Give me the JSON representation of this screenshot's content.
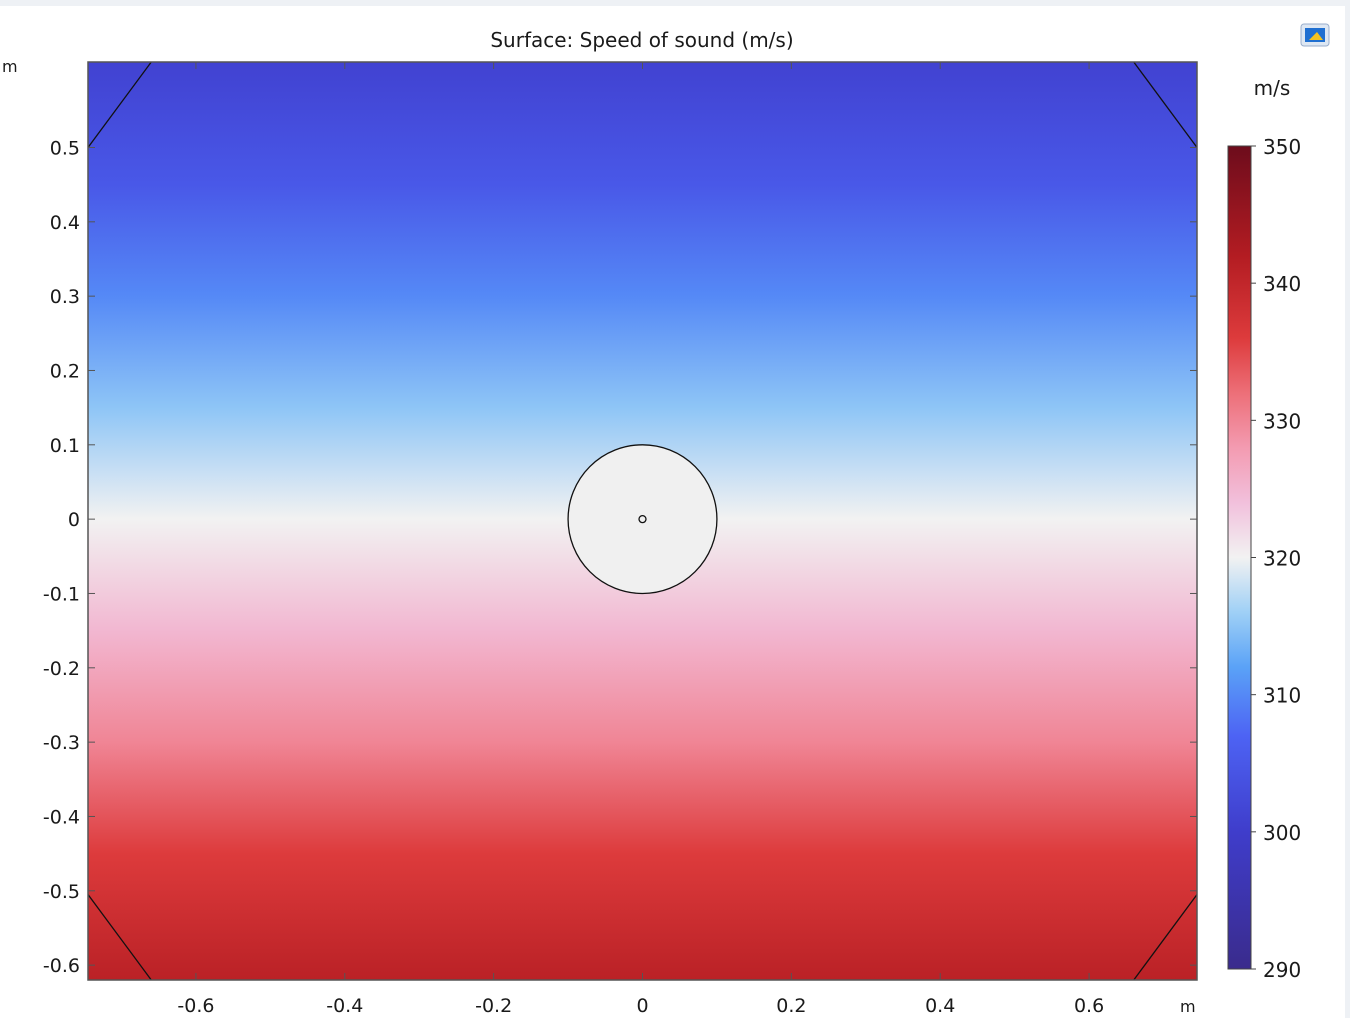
{
  "window": {
    "toolbar_icon": "image-snapshot-icon"
  },
  "chart_data": {
    "type": "heatmap",
    "title": "Surface: Speed of sound (m/s)",
    "xlabel": "m",
    "ylabel": "m",
    "xlim": [
      -0.745,
      0.745
    ],
    "ylim": [
      -0.62,
      0.615
    ],
    "x_ticks": [
      -0.6,
      -0.4,
      -0.2,
      0,
      0.2,
      0.4,
      0.6
    ],
    "x_tick_labels": [
      "-0.6",
      "-0.4",
      "-0.2",
      "0",
      "0.2",
      "0.4",
      "0.6"
    ],
    "y_ticks": [
      0.5,
      0.4,
      0.3,
      0.2,
      0.1,
      0,
      -0.1,
      -0.2,
      -0.3,
      -0.4,
      -0.5,
      -0.6
    ],
    "y_tick_labels": [
      "0.5",
      "0.4",
      "0.3",
      "0.2",
      "0.1",
      "0",
      "-0.1",
      "-0.2",
      "-0.3",
      "-0.4",
      "-0.5",
      "-0.6"
    ],
    "field": {
      "description": "vertical gradient",
      "stops": [
        {
          "y": 0.615,
          "value": 301
        },
        {
          "y": 0.45,
          "value": 305
        },
        {
          "y": 0.3,
          "value": 310
        },
        {
          "y": 0.15,
          "value": 315
        },
        {
          "y": 0.0,
          "value": 320
        },
        {
          "y": -0.15,
          "value": 325
        },
        {
          "y": -0.3,
          "value": 330
        },
        {
          "y": -0.45,
          "value": 336
        },
        {
          "y": -0.62,
          "value": 341
        }
      ]
    },
    "geometry": {
      "circle": {
        "cx": 0,
        "cy": 0,
        "r": 0.1,
        "fill": "#f0f0f0"
      },
      "source_point": {
        "x": 0,
        "y": 0
      },
      "corner_chamfer_lines": [
        [
          [
            -0.745,
            0.5
          ],
          [
            -0.66,
            0.615
          ]
        ],
        [
          [
            0.66,
            0.615
          ],
          [
            0.745,
            0.5
          ]
        ],
        [
          [
            -0.745,
            -0.505
          ],
          [
            -0.66,
            -0.62
          ]
        ],
        [
          [
            0.66,
            -0.62
          ],
          [
            0.745,
            -0.505
          ]
        ]
      ]
    },
    "colorbar": {
      "unit": "m/s",
      "min": 290,
      "max": 350,
      "ticks": [
        350,
        340,
        330,
        320,
        310,
        300,
        290
      ],
      "tick_labels": [
        "350",
        "340",
        "330",
        "320",
        "310",
        "300",
        "290"
      ],
      "colormap": [
        {
          "value": 290,
          "color": "#3a2b8c"
        },
        {
          "value": 300,
          "color": "#3f3dcb"
        },
        {
          "value": 307,
          "color": "#4d63f4"
        },
        {
          "value": 312,
          "color": "#5aa2f7"
        },
        {
          "value": 316,
          "color": "#9fd0f6"
        },
        {
          "value": 320,
          "color": "#f2f2f2"
        },
        {
          "value": 324,
          "color": "#f2c0dc"
        },
        {
          "value": 328,
          "color": "#f39bb1"
        },
        {
          "value": 332,
          "color": "#ed6f78"
        },
        {
          "value": 336,
          "color": "#dd3b3c"
        },
        {
          "value": 342,
          "color": "#b31c22"
        },
        {
          "value": 350,
          "color": "#6d0c1c"
        }
      ]
    }
  }
}
